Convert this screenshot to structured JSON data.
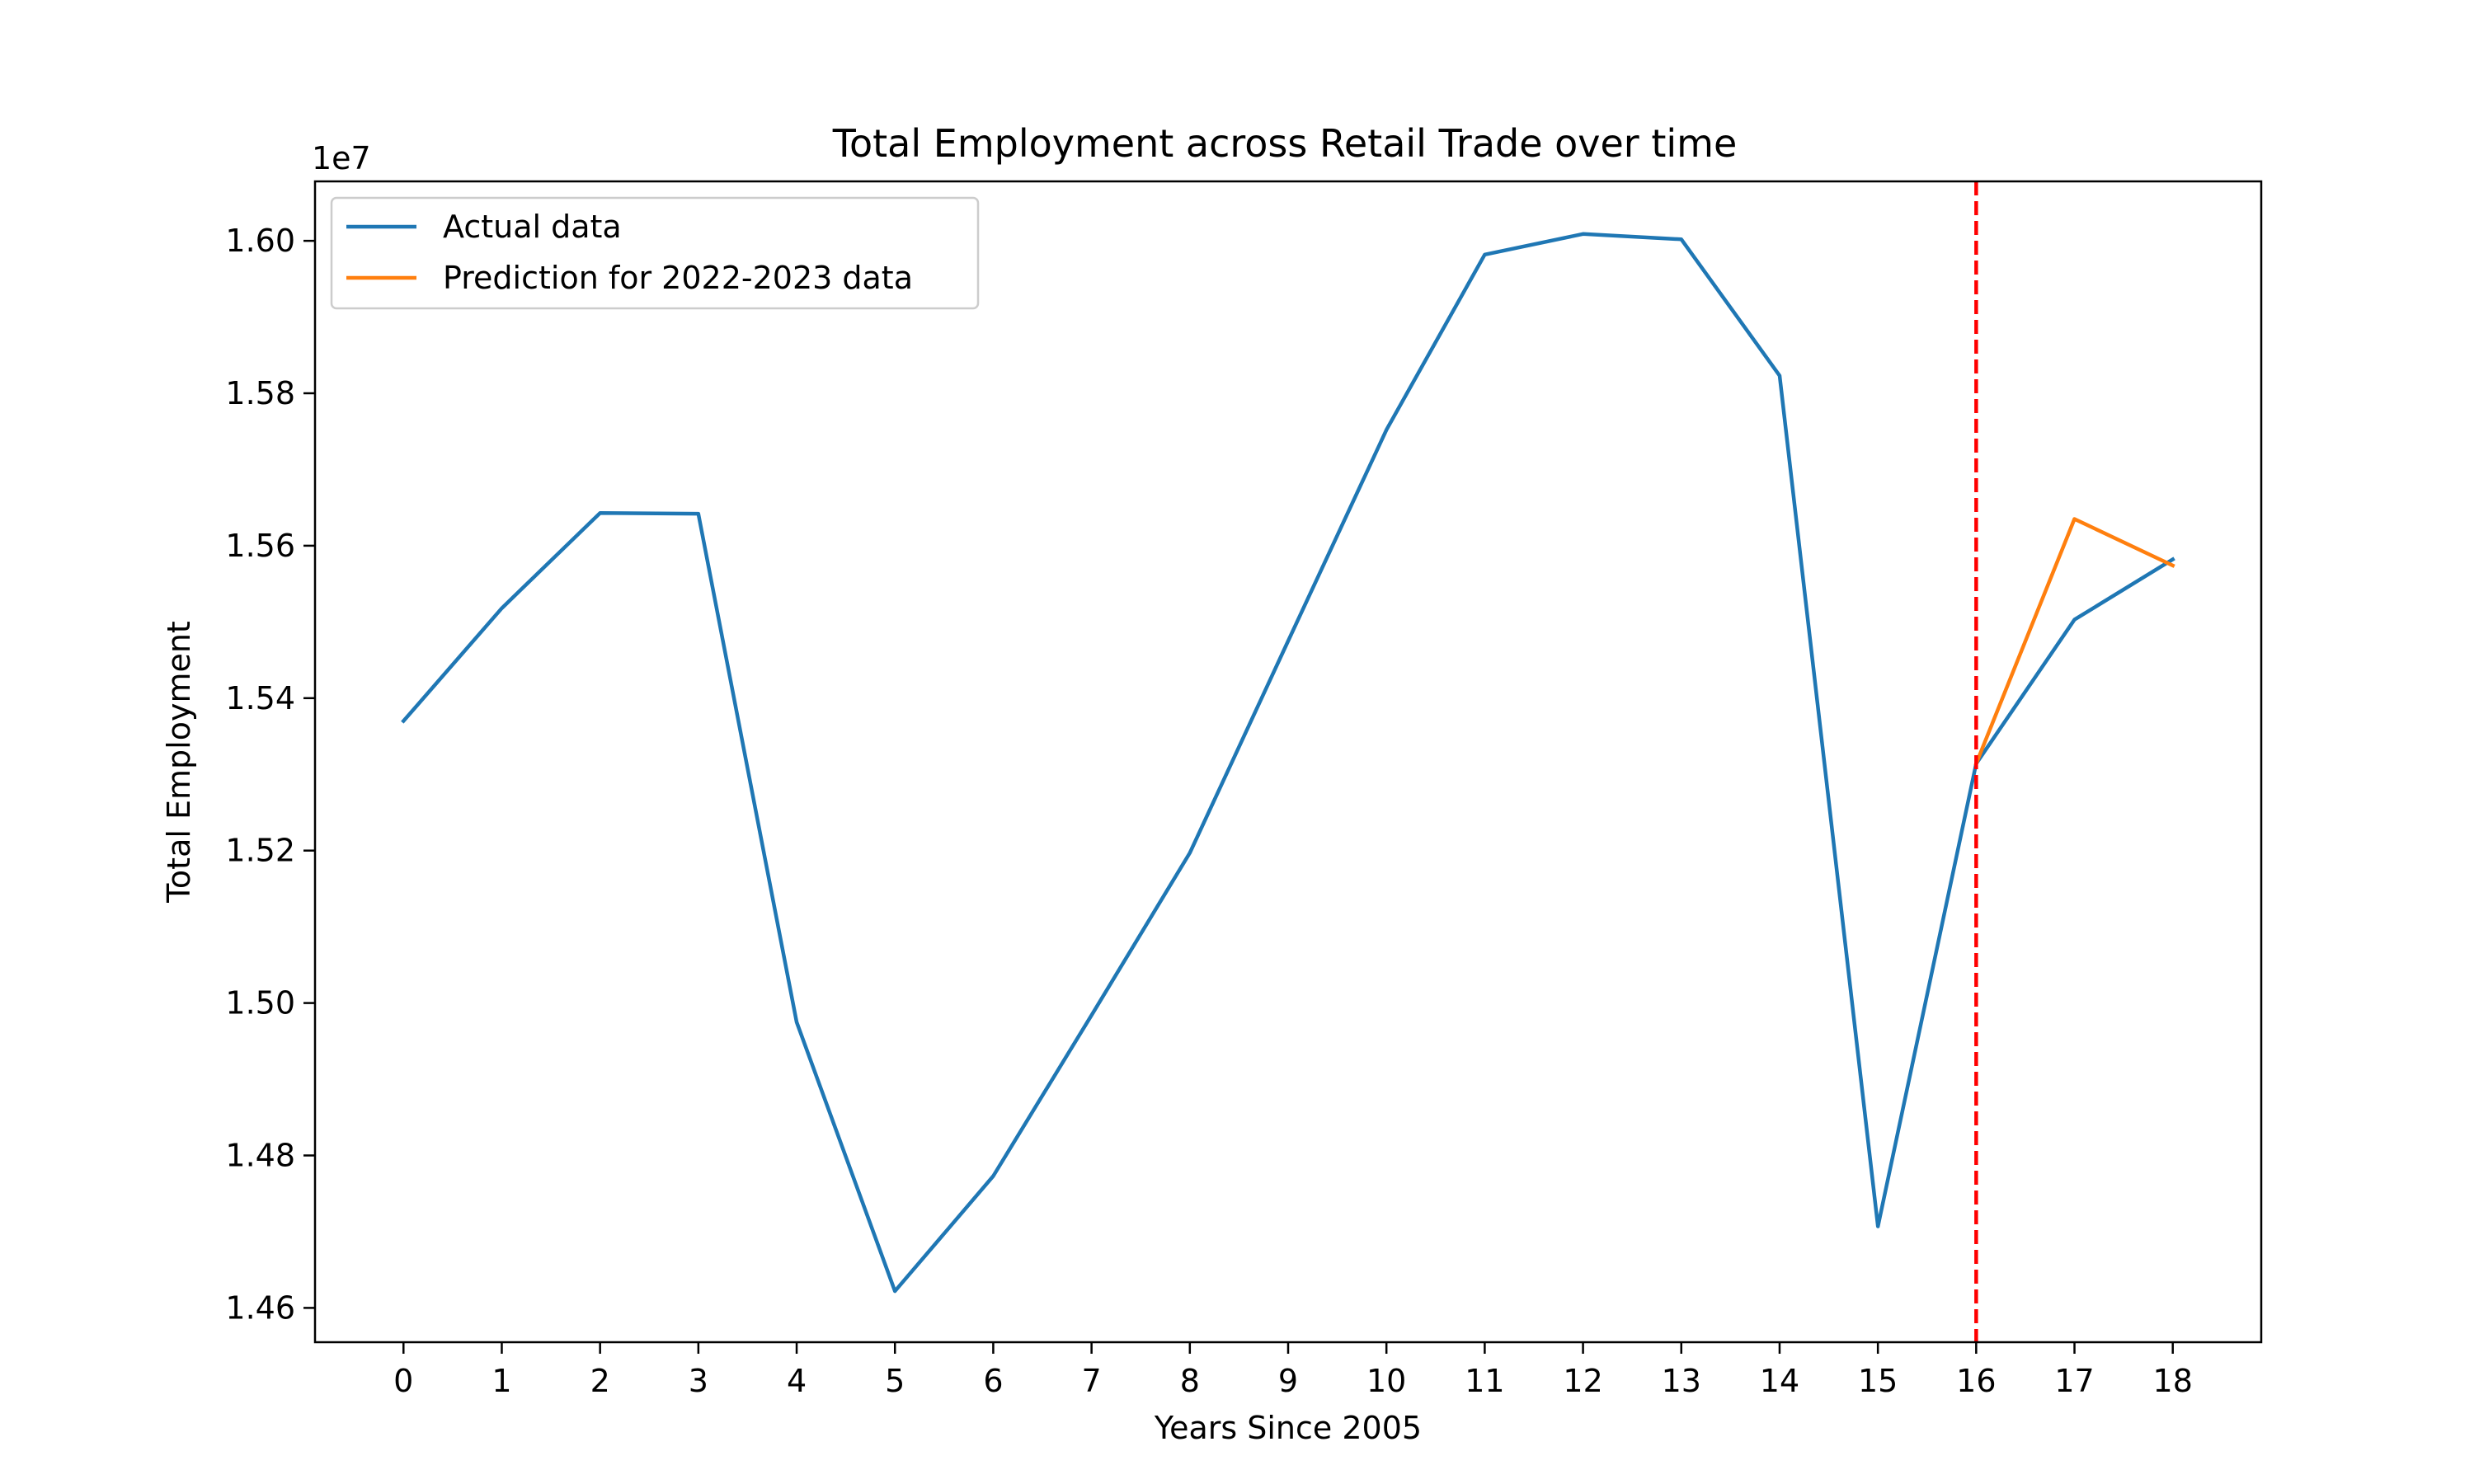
{
  "chart_data": {
    "type": "line",
    "title": "Total Employment across Retail Trade over time",
    "xlabel": "Years Since 2005",
    "ylabel": "Total Employment",
    "y_offset_label": "1e7",
    "x_ticks": [
      0,
      1,
      2,
      3,
      4,
      5,
      6,
      7,
      8,
      9,
      10,
      11,
      12,
      13,
      14,
      15,
      16,
      17,
      18
    ],
    "y_ticks": [
      1.46,
      1.48,
      1.5,
      1.52,
      1.54,
      1.56,
      1.58,
      1.6
    ],
    "y_tick_labels": [
      "1.46",
      "1.48",
      "1.50",
      "1.52",
      "1.54",
      "1.56",
      "1.58",
      "1.60"
    ],
    "xlim": [
      -0.9,
      18.9
    ],
    "ylim": [
      1.4555,
      1.6078
    ],
    "grid": false,
    "legend_position": "upper-left",
    "vline": {
      "x": 16,
      "color": "#ff0000",
      "style": "dashed"
    },
    "series": [
      {
        "name": "Actual data",
        "color": "#1f77b4",
        "x": [
          0,
          1,
          2,
          3,
          4,
          5,
          6,
          7,
          8,
          9,
          10,
          11,
          12,
          13,
          14,
          15,
          16,
          17,
          18
        ],
        "values": [
          1.537,
          1.5518,
          1.5643,
          1.5642,
          1.4975,
          1.4622,
          1.4773,
          1.4984,
          1.5197,
          1.5475,
          1.5752,
          1.5982,
          1.6009,
          1.6002,
          1.5823,
          1.4707,
          1.5314,
          1.5503,
          1.5582
        ]
      },
      {
        "name": "Prediction for 2022-2023 data",
        "color": "#ff7f0e",
        "x": [
          16,
          17,
          18
        ],
        "values": [
          1.5314,
          1.5635,
          1.5574
        ]
      }
    ]
  }
}
